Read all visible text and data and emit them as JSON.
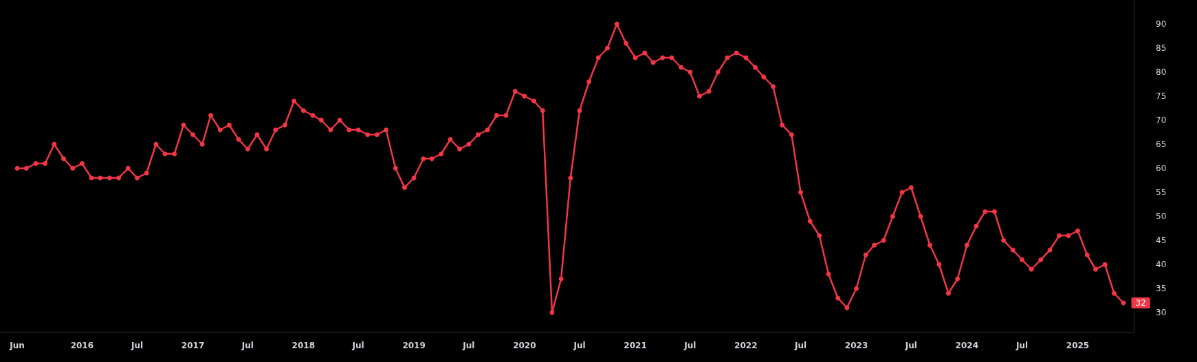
{
  "chart_data": {
    "type": "line",
    "x": [
      "2015-06",
      "2015-07",
      "2015-08",
      "2015-09",
      "2015-10",
      "2015-11",
      "2015-12",
      "2016-01",
      "2016-02",
      "2016-03",
      "2016-04",
      "2016-05",
      "2016-06",
      "2016-07",
      "2016-08",
      "2016-09",
      "2016-10",
      "2016-11",
      "2016-12",
      "2017-01",
      "2017-02",
      "2017-03",
      "2017-04",
      "2017-05",
      "2017-06",
      "2017-07",
      "2017-08",
      "2017-09",
      "2017-10",
      "2017-11",
      "2017-12",
      "2018-01",
      "2018-02",
      "2018-03",
      "2018-04",
      "2018-05",
      "2018-06",
      "2018-07",
      "2018-08",
      "2018-09",
      "2018-10",
      "2018-11",
      "2018-12",
      "2019-01",
      "2019-02",
      "2019-03",
      "2019-04",
      "2019-05",
      "2019-06",
      "2019-07",
      "2019-08",
      "2019-09",
      "2019-10",
      "2019-11",
      "2019-12",
      "2020-01",
      "2020-02",
      "2020-03",
      "2020-04",
      "2020-05",
      "2020-06",
      "2020-07",
      "2020-08",
      "2020-09",
      "2020-10",
      "2020-11",
      "2020-12",
      "2021-01",
      "2021-02",
      "2021-03",
      "2021-04",
      "2021-05",
      "2021-06",
      "2021-07",
      "2021-08",
      "2021-09",
      "2021-10",
      "2021-11",
      "2021-12",
      "2022-01",
      "2022-02",
      "2022-03",
      "2022-04",
      "2022-05",
      "2022-06",
      "2022-07",
      "2022-08",
      "2022-09",
      "2022-10",
      "2022-11",
      "2022-12",
      "2023-01",
      "2023-02",
      "2023-03",
      "2023-04",
      "2023-05",
      "2023-06",
      "2023-07",
      "2023-08",
      "2023-09",
      "2023-10",
      "2023-11",
      "2023-12",
      "2024-01",
      "2024-02",
      "2024-03",
      "2024-04",
      "2024-05",
      "2024-06",
      "2024-07",
      "2024-08",
      "2024-09",
      "2024-10",
      "2024-11",
      "2024-12",
      "2025-01",
      "2025-02",
      "2025-03",
      "2025-04",
      "2025-05",
      "2025-06"
    ],
    "series": [
      {
        "color": "#f23645",
        "values": [
          60,
          60,
          61,
          61,
          65,
          62,
          60,
          61,
          58,
          58,
          58,
          58,
          60,
          58,
          59,
          65,
          63,
          63,
          69,
          67,
          65,
          71,
          68,
          69,
          66,
          64,
          67,
          64,
          68,
          69,
          74,
          72,
          71,
          70,
          68,
          70,
          68,
          68,
          67,
          67,
          68,
          60,
          56,
          58,
          62,
          62,
          63,
          66,
          64,
          65,
          67,
          68,
          71,
          71,
          76,
          75,
          74,
          72,
          30,
          37,
          58,
          72,
          78,
          83,
          85,
          90,
          86,
          83,
          84,
          82,
          83,
          83,
          81,
          80,
          75,
          76,
          80,
          83,
          84,
          83,
          81,
          79,
          77,
          69,
          67,
          55,
          49,
          46,
          38,
          33,
          31,
          35,
          42,
          44,
          45,
          50,
          55,
          56,
          50,
          44,
          40,
          34,
          37,
          44,
          48,
          51,
          51,
          45,
          43,
          41,
          39,
          41,
          43,
          46,
          46,
          47,
          42,
          39,
          40,
          34,
          32
        ],
        "value_labels": [
          null,
          null,
          null,
          null,
          null,
          null,
          null,
          null,
          null,
          null,
          null,
          null,
          null,
          null,
          null,
          null,
          null,
          null,
          null,
          null,
          null,
          null,
          null,
          null,
          null,
          null,
          null,
          null,
          null,
          null,
          null,
          null,
          null,
          null,
          null,
          null,
          null,
          null,
          null,
          null,
          null,
          null,
          null,
          null,
          null,
          null,
          null,
          null,
          null,
          null,
          null,
          null,
          null,
          null,
          null,
          null,
          null,
          null,
          null,
          null,
          null,
          null,
          null,
          null,
          null,
          null,
          null,
          null,
          null,
          null,
          null,
          null,
          null,
          null,
          null,
          null,
          null,
          null,
          null,
          null,
          null,
          null,
          null,
          null,
          null,
          null,
          null,
          null,
          null,
          null,
          null,
          null,
          null,
          null,
          null,
          null,
          null,
          null,
          null,
          null,
          null,
          null,
          null,
          null,
          null,
          null,
          null,
          null,
          null,
          null,
          null,
          null,
          null,
          null,
          null,
          null,
          null,
          null,
          null,
          null,
          "32"
        ]
      }
    ],
    "xlim": [
      "2015-04-05",
      "2025-07-05"
    ],
    "xticks": [
      {
        "value": "2015-06",
        "label": "Jun"
      },
      {
        "value": "2016-01",
        "label": "2016"
      },
      {
        "value": "2016-07",
        "label": "Jul"
      },
      {
        "value": "2017-01",
        "label": "2017"
      },
      {
        "value": "2017-07",
        "label": "Jul"
      },
      {
        "value": "2018-01",
        "label": "2018"
      },
      {
        "value": "2018-07",
        "label": "Jul"
      },
      {
        "value": "2019-01",
        "label": "2019"
      },
      {
        "value": "2019-07",
        "label": "Jul"
      },
      {
        "value": "2020-01",
        "label": "2020"
      },
      {
        "value": "2020-07",
        "label": "Jul"
      },
      {
        "value": "2021-01",
        "label": "2021"
      },
      {
        "value": "2021-07",
        "label": "Jul"
      },
      {
        "value": "2022-01",
        "label": "2022"
      },
      {
        "value": "2022-07",
        "label": "Jul"
      },
      {
        "value": "2023-01",
        "label": "2023"
      },
      {
        "value": "2023-07",
        "label": "Jul"
      },
      {
        "value": "2024-01",
        "label": "2024"
      },
      {
        "value": "2024-07",
        "label": "Jul"
      },
      {
        "value": "2025-01",
        "label": "2025"
      }
    ],
    "ylim": [
      26,
      95
    ],
    "yticks": [
      30,
      35,
      40,
      45,
      50,
      55,
      60,
      65,
      70,
      75,
      80,
      85,
      90
    ],
    "marker": "circle",
    "line_style": "solid",
    "grid": false
  }
}
